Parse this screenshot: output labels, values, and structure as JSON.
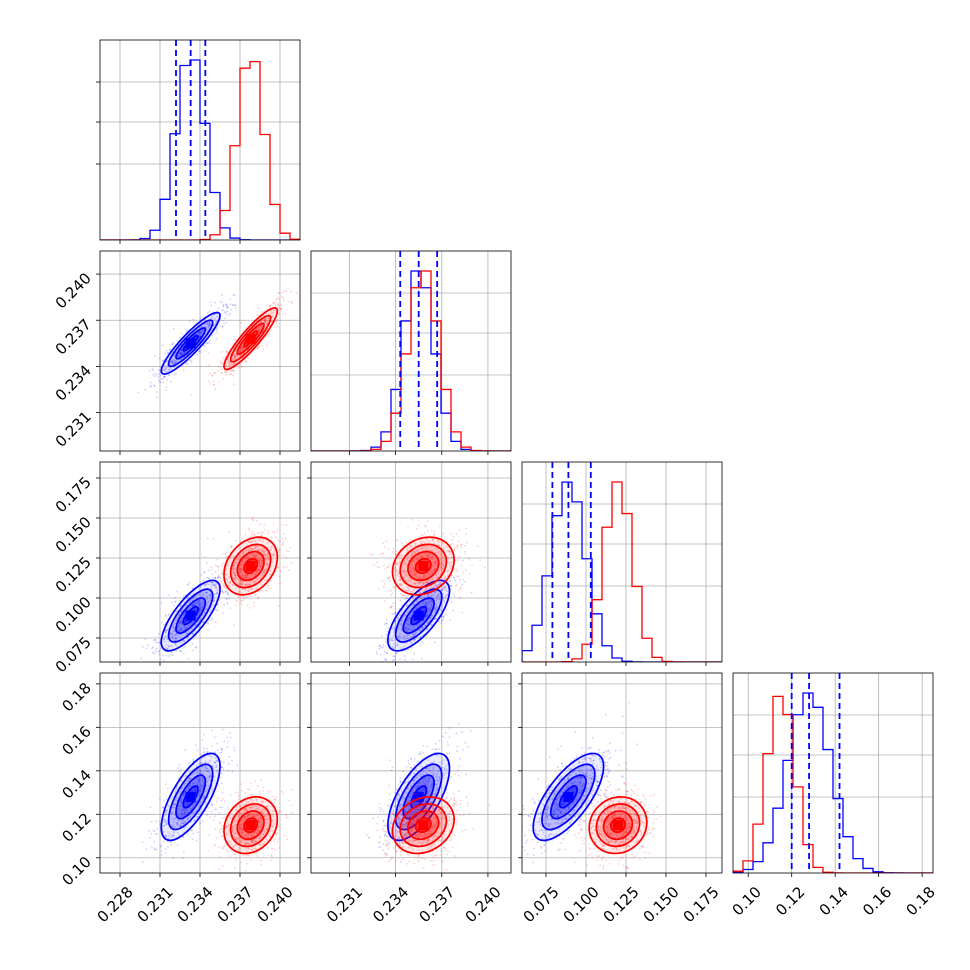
{
  "chart_data": {
    "type": "corner",
    "grid": true,
    "colors": {
      "blue": "#0000ff",
      "red": "#ff0000"
    },
    "params": [
      {
        "range": [
          0.2265,
          0.2415
        ],
        "ticks": [
          "0.228",
          "0.231",
          "0.234",
          "0.237",
          "0.240"
        ],
        "tick_values": [
          0.228,
          0.231,
          0.234,
          0.237,
          0.24
        ]
      },
      {
        "range": [
          0.2285,
          0.2415
        ],
        "ticks": [
          "0.231",
          "0.234",
          "0.237",
          "0.240"
        ],
        "tick_values": [
          0.231,
          0.234,
          0.237,
          0.24
        ]
      },
      {
        "range": [
          0.06,
          0.185
        ],
        "ticks": [
          "0.075",
          "0.100",
          "0.125",
          "0.150",
          "0.175"
        ],
        "tick_values": [
          0.075,
          0.1,
          0.125,
          0.15,
          0.175
        ]
      },
      {
        "range": [
          0.093,
          0.185
        ],
        "ticks": [
          "0.10",
          "0.12",
          "0.14",
          "0.16",
          "0.18"
        ],
        "tick_values": [
          0.1,
          0.12,
          0.14,
          0.16,
          0.18
        ]
      }
    ],
    "series": [
      {
        "color": "blue",
        "mean": [
          0.2333,
          0.2355,
          0.089,
          0.128
        ],
        "sd": [
          0.0011,
          0.001,
          0.011,
          0.01
        ],
        "quantiles": [
          [
            0.2322,
            0.2333,
            0.2344
          ],
          [
            0.2343,
            0.2355,
            0.2367
          ],
          [
            0.079,
            0.089,
            0.103
          ],
          [
            0.12,
            0.128,
            0.142
          ]
        ],
        "correlation": [
          [
            1,
            0.9,
            0.75,
            0.7
          ],
          [
            0.9,
            1,
            0.7,
            0.65
          ],
          [
            0.75,
            0.7,
            1,
            0.7
          ],
          [
            0.7,
            0.65,
            0.7,
            1
          ]
        ]
      },
      {
        "color": "red",
        "mean": [
          0.2378,
          0.2358,
          0.12,
          0.115
        ],
        "sd": [
          0.001,
          0.001,
          0.009,
          0.0065
        ],
        "correlation": [
          [
            1,
            0.9,
            0.3,
            0.2
          ],
          [
            0.9,
            1,
            0.2,
            0.2
          ],
          [
            0.3,
            0.2,
            1,
            0.1
          ],
          [
            0.2,
            0.2,
            0.1,
            1
          ]
        ]
      }
    ]
  }
}
